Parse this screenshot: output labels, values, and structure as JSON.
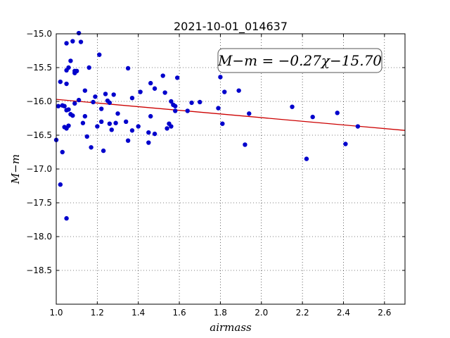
{
  "chart_data": {
    "type": "scatter",
    "title": "2021-10-01_014637",
    "xlabel": "airmass",
    "ylabel": "M−m",
    "xlim": [
      1.0,
      2.7
    ],
    "ylim": [
      -19.0,
      -15.0
    ],
    "y_inverted": true,
    "x_ticks": [
      1.0,
      1.2,
      1.4,
      1.6,
      1.8,
      2.0,
      2.2,
      2.4,
      2.6
    ],
    "x_tick_labels": [
      "1.0",
      "1.2",
      "1.4",
      "1.6",
      "1.8",
      "2.0",
      "2.2",
      "2.4",
      "2.6"
    ],
    "y_ticks": [
      -15.0,
      -15.5,
      -16.0,
      -16.5,
      -17.0,
      -17.5,
      -18.0,
      -18.5
    ],
    "y_tick_labels": [
      "−15.0",
      "−15.5",
      "−16.0",
      "−16.5",
      "−17.0",
      "−17.5",
      "−18.0",
      "−18.5"
    ],
    "grid": true,
    "annotation": "M−m = −0.27χ−15.70",
    "fit_line": {
      "slope": -0.27,
      "intercept": -15.7,
      "color": "#cc0000"
    },
    "marker_color": "#0000cc",
    "points": [
      {
        "x": 1.0,
        "y": -16.57
      },
      {
        "x": 1.01,
        "y": -16.07
      },
      {
        "x": 1.02,
        "y": -15.71
      },
      {
        "x": 1.02,
        "y": -17.23
      },
      {
        "x": 1.03,
        "y": -16.75
      },
      {
        "x": 1.03,
        "y": -16.06
      },
      {
        "x": 1.04,
        "y": -16.07
      },
      {
        "x": 1.04,
        "y": -16.38
      },
      {
        "x": 1.05,
        "y": -17.73
      },
      {
        "x": 1.05,
        "y": -16.4
      },
      {
        "x": 1.05,
        "y": -16.13
      },
      {
        "x": 1.05,
        "y": -15.54
      },
      {
        "x": 1.05,
        "y": -15.14
      },
      {
        "x": 1.05,
        "y": -15.74
      },
      {
        "x": 1.06,
        "y": -16.36
      },
      {
        "x": 1.06,
        "y": -16.12
      },
      {
        "x": 1.06,
        "y": -15.5
      },
      {
        "x": 1.07,
        "y": -15.4
      },
      {
        "x": 1.07,
        "y": -16.19
      },
      {
        "x": 1.08,
        "y": -16.21
      },
      {
        "x": 1.08,
        "y": -15.11
      },
      {
        "x": 1.09,
        "y": -15.58
      },
      {
        "x": 1.09,
        "y": -15.55
      },
      {
        "x": 1.09,
        "y": -16.03
      },
      {
        "x": 1.1,
        "y": -15.55
      },
      {
        "x": 1.11,
        "y": -14.99
      },
      {
        "x": 1.11,
        "y": -15.98
      },
      {
        "x": 1.12,
        "y": -15.12
      },
      {
        "x": 1.13,
        "y": -16.32
      },
      {
        "x": 1.14,
        "y": -16.22
      },
      {
        "x": 1.14,
        "y": -15.84
      },
      {
        "x": 1.15,
        "y": -16.52
      },
      {
        "x": 1.16,
        "y": -15.5
      },
      {
        "x": 1.17,
        "y": -16.68
      },
      {
        "x": 1.18,
        "y": -16.01
      },
      {
        "x": 1.19,
        "y": -15.93
      },
      {
        "x": 1.2,
        "y": -16.37
      },
      {
        "x": 1.21,
        "y": -15.31
      },
      {
        "x": 1.22,
        "y": -16.11
      },
      {
        "x": 1.22,
        "y": -16.3
      },
      {
        "x": 1.23,
        "y": -16.73
      },
      {
        "x": 1.24,
        "y": -15.89
      },
      {
        "x": 1.25,
        "y": -15.99
      },
      {
        "x": 1.26,
        "y": -16.02
      },
      {
        "x": 1.26,
        "y": -16.33
      },
      {
        "x": 1.27,
        "y": -16.42
      },
      {
        "x": 1.28,
        "y": -15.9
      },
      {
        "x": 1.29,
        "y": -16.32
      },
      {
        "x": 1.3,
        "y": -16.18
      },
      {
        "x": 1.34,
        "y": -16.3
      },
      {
        "x": 1.35,
        "y": -16.58
      },
      {
        "x": 1.35,
        "y": -15.51
      },
      {
        "x": 1.37,
        "y": -15.95
      },
      {
        "x": 1.37,
        "y": -16.43
      },
      {
        "x": 1.4,
        "y": -16.37
      },
      {
        "x": 1.41,
        "y": -15.86
      },
      {
        "x": 1.45,
        "y": -16.61
      },
      {
        "x": 1.45,
        "y": -16.46
      },
      {
        "x": 1.46,
        "y": -16.22
      },
      {
        "x": 1.46,
        "y": -15.73
      },
      {
        "x": 1.48,
        "y": -15.81
      },
      {
        "x": 1.48,
        "y": -16.48
      },
      {
        "x": 1.52,
        "y": -15.62
      },
      {
        "x": 1.53,
        "y": -15.87
      },
      {
        "x": 1.54,
        "y": -16.4
      },
      {
        "x": 1.55,
        "y": -16.33
      },
      {
        "x": 1.56,
        "y": -16.37
      },
      {
        "x": 1.56,
        "y": -16.0
      },
      {
        "x": 1.57,
        "y": -16.05
      },
      {
        "x": 1.58,
        "y": -16.07
      },
      {
        "x": 1.58,
        "y": -16.14
      },
      {
        "x": 1.59,
        "y": -15.65
      },
      {
        "x": 1.64,
        "y": -16.14
      },
      {
        "x": 1.66,
        "y": -16.02
      },
      {
        "x": 1.7,
        "y": -16.01
      },
      {
        "x": 1.79,
        "y": -16.1
      },
      {
        "x": 1.8,
        "y": -15.64
      },
      {
        "x": 1.81,
        "y": -16.33
      },
      {
        "x": 1.82,
        "y": -15.86
      },
      {
        "x": 1.89,
        "y": -15.84
      },
      {
        "x": 1.92,
        "y": -16.64
      },
      {
        "x": 1.94,
        "y": -16.18
      },
      {
        "x": 2.15,
        "y": -16.08
      },
      {
        "x": 2.22,
        "y": -16.85
      },
      {
        "x": 2.25,
        "y": -16.23
      },
      {
        "x": 2.37,
        "y": -16.17
      },
      {
        "x": 2.41,
        "y": -16.63
      },
      {
        "x": 2.47,
        "y": -16.37
      }
    ]
  }
}
